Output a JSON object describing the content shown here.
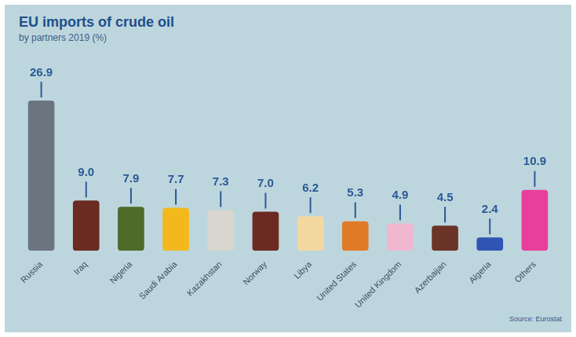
{
  "chart_data": {
    "type": "bar",
    "title": "EU imports of crude oil",
    "subtitle": "by partners 2019 (%)",
    "categories": [
      "Russia",
      "Iraq",
      "Nigeria",
      "Saudi Arabia",
      "Kazakhstan",
      "Norway",
      "Libya",
      "United States",
      "United Kingdom",
      "Azerbaijan",
      "Algeria",
      "Others"
    ],
    "values": [
      26.9,
      9.0,
      7.9,
      7.7,
      7.3,
      7.0,
      6.2,
      5.3,
      4.9,
      4.5,
      2.4,
      10.9
    ],
    "value_labels": [
      "26.9",
      "9.0",
      "7.9",
      "7.7",
      "7.3",
      "7.0",
      "6.2",
      "5.3",
      "4.9",
      "4.5",
      "2.4",
      "10.9"
    ],
    "colors": [
      "#6b7580",
      "#6b2a22",
      "#4e6b2a",
      "#f2b81c",
      "#d9d6cf",
      "#6b2a22",
      "#f3d9a0",
      "#e07a26",
      "#f0b8cf",
      "#6b3426",
      "#2f55b4",
      "#e8409a"
    ],
    "ylim": [
      0,
      30
    ],
    "grid": false,
    "data_labels": true,
    "tick_labels": "x",
    "annotations": [
      "Source: Eurostat"
    ]
  }
}
